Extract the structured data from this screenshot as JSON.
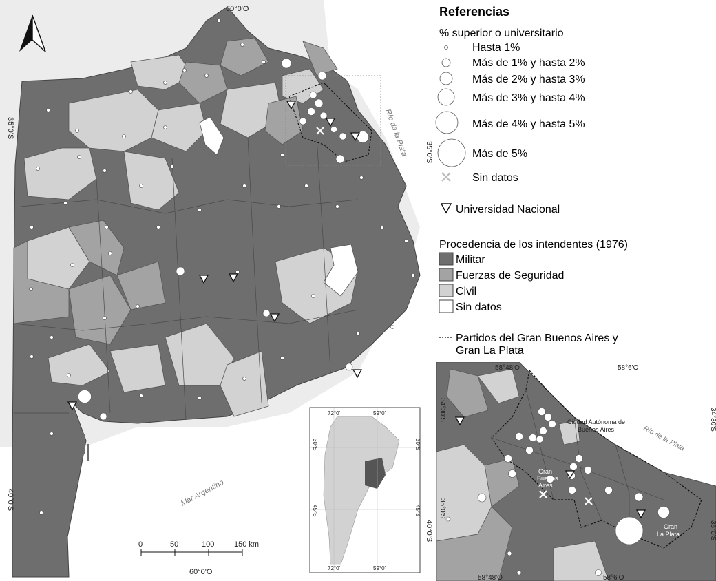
{
  "main_map": {
    "coord_top": "60°0'O",
    "coord_bottom": "60°0'O",
    "coord_left_1": "35°0'S",
    "coord_left_2": "40°0'S",
    "coord_right_1": "35°0'S",
    "coord_right_2": "40°0'S",
    "rio_label": "Río de la Plata",
    "mar_label": "Mar Argentino",
    "scale_ticks": [
      "0",
      "50",
      "100",
      "150 km"
    ]
  },
  "locator_map": {
    "coord_top_left": "72°0'",
    "coord_top_right": "59°0'",
    "coord_bottom_left": "72°0'",
    "coord_bottom_right": "59°0'",
    "coord_left_1": "30°S",
    "coord_left_2": "45°S",
    "coord_right_1": "30°S",
    "coord_right_2": "45°S"
  },
  "legend": {
    "title": "Referencias",
    "size_title": "% superior o universitario",
    "size_items": [
      "Hasta 1%",
      "Más de 1% y hasta 2%",
      "Más de 2% y hasta 3%",
      "Más de 3% y hasta 4%",
      "Más de 4% y hasta 5%",
      "Más de 5%"
    ],
    "no_data": "Sin datos",
    "university": "Universidad Nacional",
    "fill_title": "Procedencia de los intendentes (1976)",
    "fill_items": [
      {
        "label": "Militar",
        "color": "#6e6e6e"
      },
      {
        "label": "Fuerzas de Seguridad",
        "color": "#a3a3a3"
      },
      {
        "label": "Civil",
        "color": "#d2d2d2"
      },
      {
        "label": "Sin datos",
        "color": "#ffffff"
      }
    ],
    "gba_line1": "Partidos del Gran Buenos Aires y",
    "gba_line2": "Gran La Plata"
  },
  "inset_map": {
    "coord_top_1": "58°48'O",
    "coord_top_2": "58°6'O",
    "coord_bottom_1": "58°48'O",
    "coord_bottom_2": "58°6'O",
    "coord_left_1": "34°30'S",
    "coord_left_2": "35°0'S",
    "coord_right_1": "34°30'S",
    "coord_right_2": "35°0'S",
    "caba_line1": "Ciudad Autónoma de",
    "caba_line2": "Buenos Aires",
    "rio_label": "Río de la Plata",
    "gba_line1": "Gran",
    "gba_line2": "Buenos",
    "gba_line3": "Aires",
    "glp_line1": "Gran",
    "glp_line2": "La Plata"
  },
  "colors": {
    "militar": "#6e6e6e",
    "seguridad": "#a3a3a3",
    "civil": "#d2d2d2",
    "sin_datos": "#ffffff",
    "water": "#ffffff",
    "outside": "#ececec"
  }
}
